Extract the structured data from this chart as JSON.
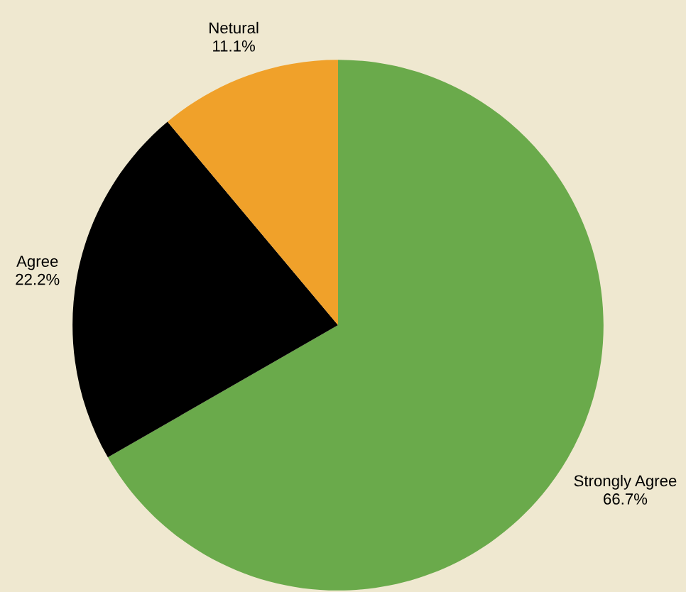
{
  "chart_data": {
    "type": "pie",
    "categories": [
      "Strongly Agree",
      "Agree",
      "Netural"
    ],
    "values": [
      66.7,
      22.2,
      11.1
    ],
    "colors": [
      "#6aaa4b",
      "#000000",
      "#f0a12a"
    ],
    "value_labels": [
      "66.7%",
      "22.2%",
      "11.1%"
    ]
  }
}
